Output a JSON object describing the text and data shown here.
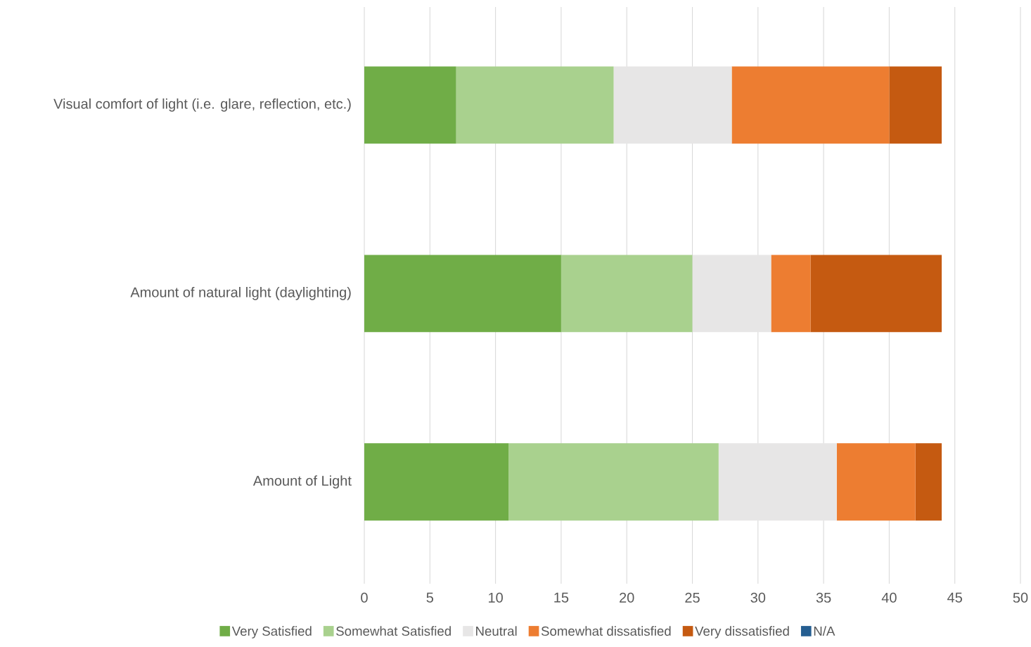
{
  "chart_data": {
    "type": "bar",
    "orientation": "horizontal",
    "stacked": true,
    "categories": [
      "Visual comfort of light (i.e. glare, reflection, etc.)",
      "Amount of natural light (daylighting)",
      "Amount of Light"
    ],
    "series": [
      {
        "name": "Very Satisfied",
        "color": "#70ad47",
        "values": [
          7,
          15,
          11
        ]
      },
      {
        "name": "Somewhat Satisfied",
        "color": "#a9d18e",
        "values": [
          12,
          10,
          16
        ]
      },
      {
        "name": "Neutral",
        "color": "#e7e6e6",
        "values": [
          9,
          6,
          9
        ]
      },
      {
        "name": "Somewhat dissatisfied",
        "color": "#ed7d31",
        "values": [
          12,
          3,
          6
        ]
      },
      {
        "name": "Very dissatisfied",
        "color": "#c55a11",
        "values": [
          4,
          10,
          2
        ]
      },
      {
        "name": "N/A",
        "color": "#255e91",
        "values": [
          0,
          0,
          0
        ]
      }
    ],
    "xlim": [
      0,
      50
    ],
    "xticks": [
      0,
      5,
      10,
      15,
      20,
      25,
      30,
      35,
      40,
      45,
      50
    ],
    "grid": "x",
    "legend": "bottom"
  }
}
